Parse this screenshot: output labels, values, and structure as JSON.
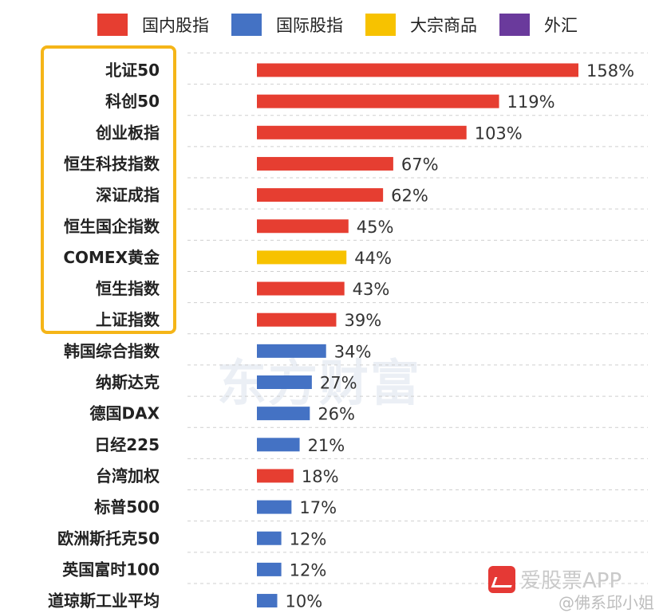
{
  "colors": {
    "国内股指": "#e63e31",
    "国际股指": "#4472c4",
    "大宗商品": "#f7c200",
    "外汇": "#6a3a9c",
    "highlight": "#f5b518",
    "grid": "#cfcfcf"
  },
  "legend": [
    {
      "label": "国内股指",
      "color": "#e63e31"
    },
    {
      "label": "国际股指",
      "color": "#4472c4"
    },
    {
      "label": "大宗商品",
      "color": "#f7c200"
    },
    {
      "label": "外汇",
      "color": "#6a3a9c"
    }
  ],
  "watermark": "东方财富",
  "app_name": "爱股票APP",
  "credit": "@佛系邱小姐",
  "chart_data": {
    "type": "bar",
    "orientation": "horizontal",
    "title": "",
    "xlabel": "",
    "ylabel": "",
    "xlim": [
      0,
      158
    ],
    "grid": false,
    "legend_position": "top",
    "value_suffix": "%",
    "categories": [
      "北证50",
      "科创50",
      "创业板指",
      "恒生科技指数",
      "深证成指",
      "恒生国企指数",
      "COMEX黄金",
      "恒生指数",
      "上证指数",
      "韩国综合指数",
      "纳斯达克",
      "德国DAX",
      "日经225",
      "台湾加权",
      "标普500",
      "欧洲斯托克50",
      "英国富时100",
      "道琼斯工业平均"
    ],
    "values": [
      158,
      119,
      103,
      67,
      62,
      45,
      44,
      43,
      39,
      34,
      27,
      26,
      21,
      18,
      17,
      12,
      12,
      10
    ],
    "labels": [
      "158%",
      "119%",
      "103%",
      "67%",
      "62%",
      "45%",
      "44%",
      "43%",
      "39%",
      "34%",
      "27%",
      "26%",
      "21%",
      "18%",
      "17%",
      "12%",
      "12%",
      "10%"
    ],
    "groups": [
      "国内股指",
      "国内股指",
      "国内股指",
      "国内股指",
      "国内股指",
      "国内股指",
      "大宗商品",
      "国内股指",
      "国内股指",
      "国际股指",
      "国际股指",
      "国际股指",
      "国际股指",
      "国内股指",
      "国际股指",
      "国际股指",
      "国际股指",
      "国际股指"
    ],
    "highlighted_count": 9
  }
}
